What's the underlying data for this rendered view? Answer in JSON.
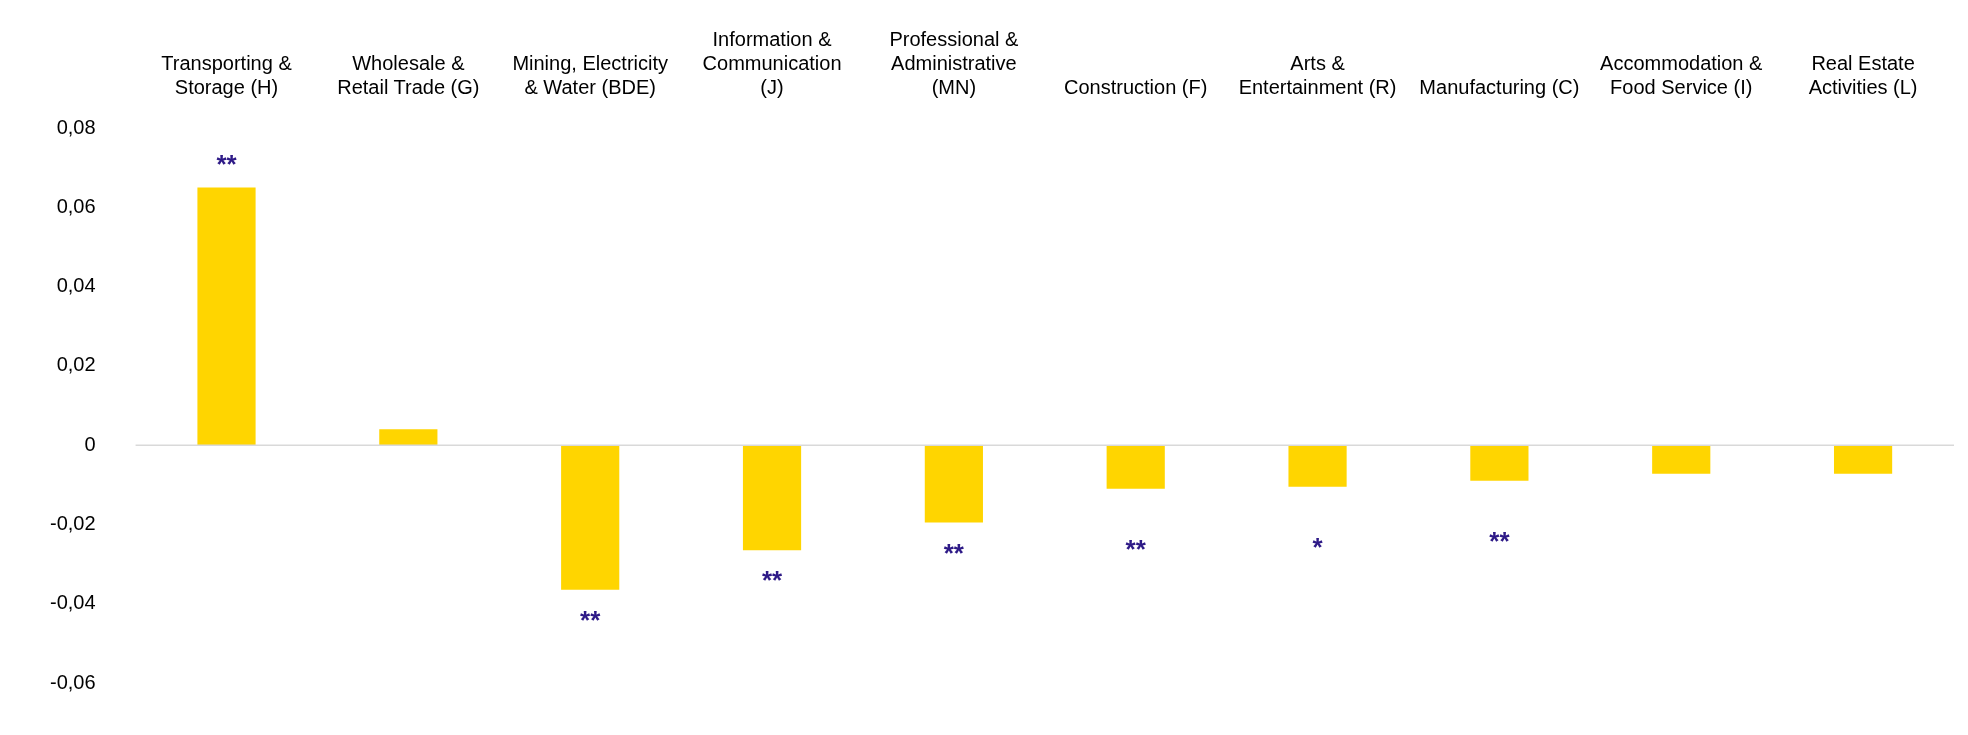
{
  "chart_data": {
    "type": "bar",
    "categories": [
      "Transporting & Storage (H)",
      "Wholesale & Retail Trade (G)",
      "Mining, Electricity & Water (BDE)",
      "Information & Communication (J)",
      "Professional & Administrative (MN)",
      "Construction (F)",
      "Arts & Entertainment (R)",
      "Manufacturing (C)",
      "Accommodation & Food Service (I)",
      "Real Estate Activities (L)"
    ],
    "values": [
      0.065,
      0.004,
      -0.0365,
      -0.0265,
      -0.0195,
      -0.011,
      -0.0105,
      -0.009,
      -0.0072,
      -0.0072
    ],
    "color": "#ffd500",
    "ylim": [
      -0.06,
      0.08
    ],
    "yticks": [
      {
        "value": -0.06,
        "label": "-0,06"
      },
      {
        "value": -0.04,
        "label": "-0,04"
      },
      {
        "value": -0.02,
        "label": "-0,02"
      },
      0,
      {
        "value": 0.02,
        "label": "0,02"
      },
      {
        "value": 0.04,
        "label": "0,04"
      },
      {
        "value": 0.06,
        "label": "0,06"
      },
      {
        "value": 0.08,
        "label": "0,08"
      }
    ],
    "grid": false,
    "legend": false,
    "ref_lines": [
      {
        "axis": "y",
        "value": 0,
        "color": "#d9d9d9"
      }
    ],
    "annotations": [
      {
        "text": "**",
        "x": "Transporting & Storage (H)",
        "y": 0.065
      },
      {
        "text": "**",
        "x": "Mining, Electricity & Water (BDE)",
        "y": -0.0365
      },
      {
        "text": "**",
        "x": "Information & Communication (J)",
        "y": -0.0265
      },
      {
        "text": "**",
        "x": "Professional & Administrative (MN)",
        "y": -0.0195
      },
      {
        "text": "**",
        "x": "Construction (F)",
        "y": -0.011
      },
      {
        "text": "*",
        "x": "Arts & Entertainment (R)",
        "y": -0.0105
      },
      {
        "text": "**",
        "x": "Manufacturing (C)",
        "y": -0.009
      }
    ]
  }
}
